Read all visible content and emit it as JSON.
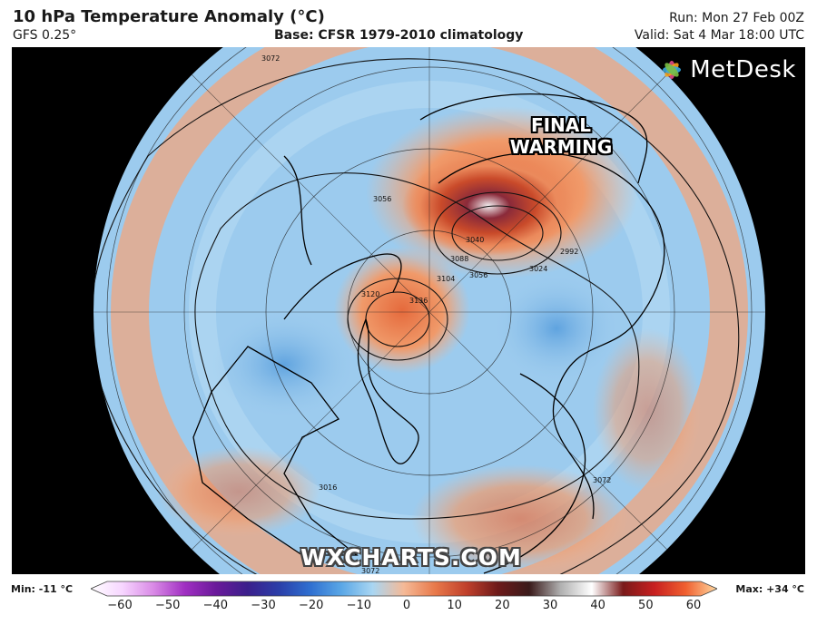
{
  "header": {
    "title": "10 hPa Temperature Anomaly (°C)",
    "model": "GFS 0.25°",
    "base": "Base: CFSR 1979-2010 climatology",
    "run": "Run: Mon 27 Feb 00Z",
    "valid": "Valid: Sat 4 Mar 18:00 UTC"
  },
  "map": {
    "annotation_line1": "FINAL",
    "annotation_line2": "WARMING",
    "brand": "MetDesk",
    "watermark": "WXCHARTS.COM",
    "contour_labels": [
      "3072",
      "3072",
      "3056",
      "3040",
      "3088",
      "3104",
      "3120",
      "3136",
      "3056",
      "3024",
      "2992",
      "3072",
      "3072",
      "3016"
    ]
  },
  "legend": {
    "min": "Min: -11 °C",
    "max": "Max: +34 °C",
    "ticks": [
      "−60",
      "−50",
      "−40",
      "−30",
      "−20",
      "−10",
      "0",
      "10",
      "20",
      "30",
      "40",
      "50",
      "60"
    ],
    "colors": [
      "#ffffff",
      "#f7d6ff",
      "#d98ae6",
      "#a02fc2",
      "#6a1a9a",
      "#3b1f8c",
      "#2b3ea8",
      "#2f6fd0",
      "#5aa7e6",
      "#a9d6f2",
      "#f5b996",
      "#e8794a",
      "#c0402b",
      "#6d1a1a",
      "#3a1a1a",
      "#b0b0b0",
      "#ffffff",
      "#7a1a1a",
      "#c82020",
      "#f06030",
      "#ffd9a0"
    ]
  }
}
